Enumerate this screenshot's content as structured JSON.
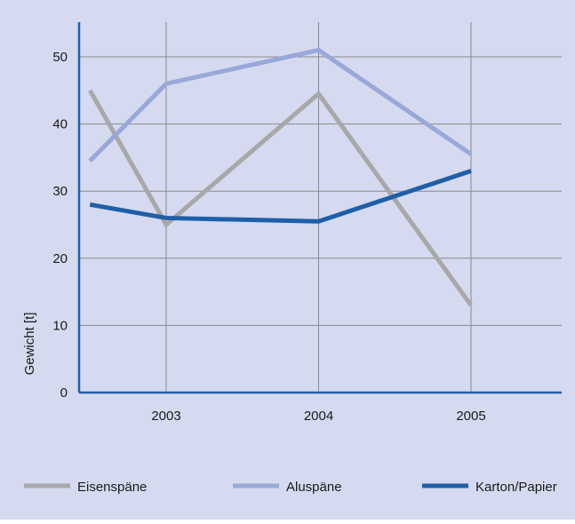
{
  "colors": {
    "background": "#d5daf0",
    "grid": "#8a8a8a",
    "axis": "#1f5fa8"
  },
  "chart_data": {
    "type": "line",
    "title": "",
    "xlabel": "",
    "ylabel": "Gewicht [t]",
    "categories": [
      "2003",
      "2004",
      "2005"
    ],
    "x_range": [
      2002.5,
      2005.6
    ],
    "ylim": [
      0,
      55
    ],
    "yticks": [
      0,
      10,
      20,
      30,
      40,
      50
    ],
    "grid": true,
    "legend_position": "bottom",
    "series": [
      {
        "name": "Eisenspäne",
        "color": "#a8a8a8",
        "x": [
          2002.5,
          2003,
          2004,
          2005
        ],
        "values": [
          45,
          25,
          44.5,
          13
        ]
      },
      {
        "name": "Aluspäne",
        "color": "#98a8d8",
        "x": [
          2002.5,
          2003,
          2004,
          2005
        ],
        "values": [
          34.5,
          46,
          51,
          35.5
        ]
      },
      {
        "name": "Karton/Papier",
        "color": "#1f5fa8",
        "x": [
          2002.5,
          2003,
          2004,
          2005
        ],
        "values": [
          28,
          26,
          25.5,
          33
        ]
      }
    ]
  }
}
